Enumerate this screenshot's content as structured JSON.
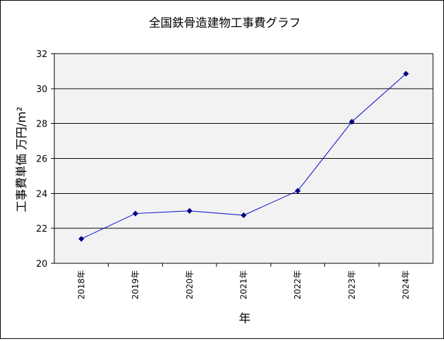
{
  "chart_data": {
    "type": "line",
    "title": "全国鉄骨造建物工事費グラフ",
    "xlabel": "年",
    "ylabel": "工事費単価 万円/m²",
    "categories": [
      "2018年",
      "2019年",
      "2020年",
      "2021年",
      "2022年",
      "2023年",
      "2024年"
    ],
    "series": [
      {
        "values": [
          21.4,
          22.85,
          23.0,
          22.75,
          24.15,
          28.1,
          30.85
        ]
      }
    ],
    "ylim": [
      20,
      32
    ],
    "yticks": [
      20,
      22,
      24,
      26,
      28,
      30,
      32
    ],
    "grid": "horizontal",
    "legend": "none",
    "colors": {
      "line": "#0000cc",
      "marker": "#000080",
      "plot_bg": "#f2f2f2"
    }
  }
}
